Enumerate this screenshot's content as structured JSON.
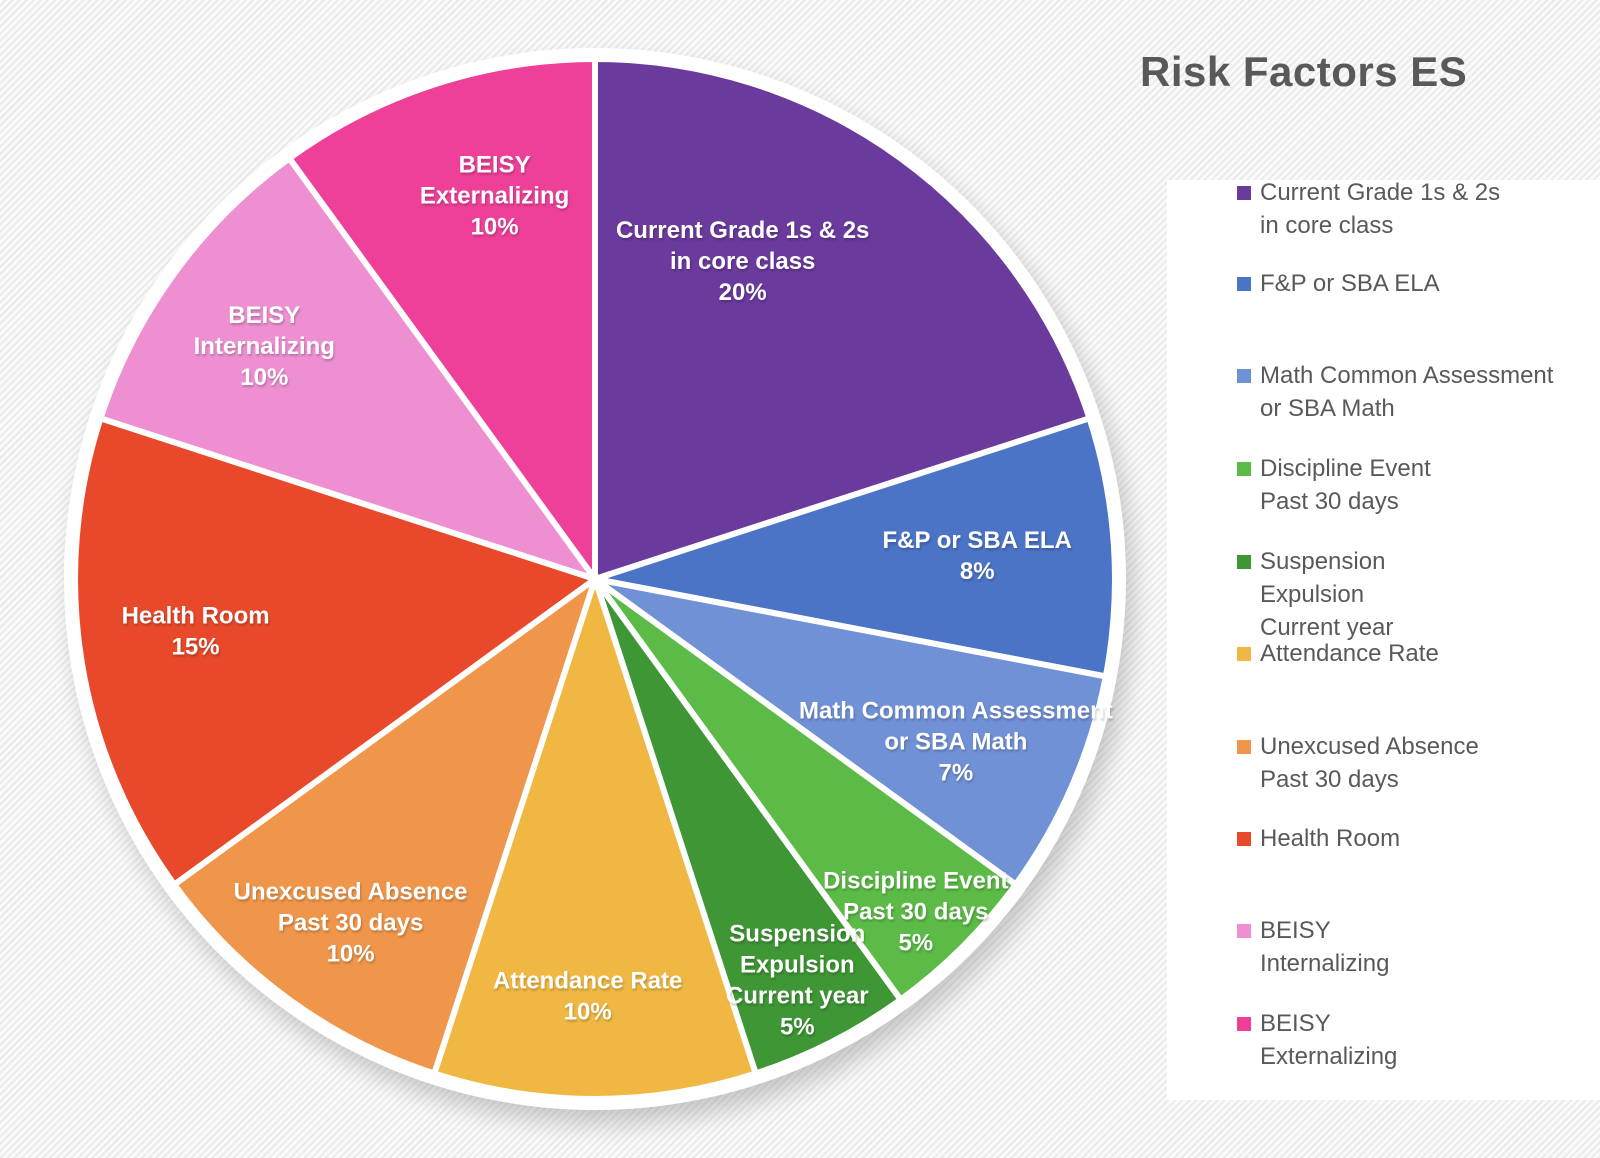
{
  "chart_data": {
    "type": "pie",
    "title": "Risk Factors ES",
    "unit": "%",
    "start_angle_deg": 0,
    "direction": "clockwise",
    "legend_position": "right",
    "grid": false,
    "slices": [
      {
        "label_lines": [
          "Current Grade 1s & 2s",
          "in core class"
        ],
        "value": 20,
        "value_label": "20%",
        "color": "#6B3A9D",
        "label_fx": 0.284,
        "label_fy": -0.611
      },
      {
        "label_lines": [
          "F&P or SBA ELA"
        ],
        "value": 8,
        "value_label": "8%",
        "color": "#4B74C6",
        "label_fx": 0.735,
        "label_fy": -0.044
      },
      {
        "label_lines": [
          "Math Common Assessment",
          "or SBA Math"
        ],
        "value": 7,
        "value_label": "7%",
        "color": "#7191D6",
        "label_fx": 0.694,
        "label_fy": 0.313
      },
      {
        "label_lines": [
          "Discipline Event",
          "Past 30 days"
        ],
        "value": 5,
        "value_label": "5%",
        "color": "#5CBB46",
        "label_fx": 0.617,
        "label_fy": 0.64
      },
      {
        "label_lines": [
          "Suspension",
          "Expulsion",
          "Current year"
        ],
        "value": 5,
        "value_label": "5%",
        "color": "#3E9634",
        "label_fx": 0.389,
        "label_fy": 0.772
      },
      {
        "label_lines": [
          "Attendance Rate"
        ],
        "value": 10,
        "value_label": "10%",
        "color": "#F0B843",
        "label_fx": -0.014,
        "label_fy": 0.803
      },
      {
        "label_lines": [
          "Unexcused Absence",
          "Past 30 days"
        ],
        "value": 10,
        "value_label": "10%",
        "color": "#F0964A",
        "label_fx": -0.47,
        "label_fy": 0.662
      },
      {
        "label_lines": [
          "Health Room"
        ],
        "value": 15,
        "value_label": "15%",
        "color": "#E8492B",
        "label_fx": -0.768,
        "label_fy": 0.101
      },
      {
        "label_lines": [
          "BEISY",
          "Internalizing"
        ],
        "value": 10,
        "value_label": "10%",
        "color": "#EE8FD2",
        "label_fx": -0.636,
        "label_fy": -0.447
      },
      {
        "label_lines": [
          "BEISY",
          "Externalizing"
        ],
        "value": 10,
        "value_label": "10%",
        "color": "#EE4099",
        "label_fx": -0.193,
        "label_fy": -0.737
      }
    ]
  },
  "legend": {
    "items": [
      {
        "lines": [
          "Current Grade 1s & 2s",
          "in core class"
        ]
      },
      {
        "lines": [
          "F&P or SBA ELA"
        ]
      },
      {
        "lines": [
          "Math Common Assessment",
          "or SBA Math"
        ]
      },
      {
        "lines": [
          "Discipline Event",
          "Past 30 days"
        ]
      },
      {
        "lines": [
          "Suspension",
          "Expulsion",
          "Current year"
        ]
      },
      {
        "lines": [
          "Attendance Rate"
        ]
      },
      {
        "lines": [
          "Unexcused Absence",
          "Past 30 days"
        ]
      },
      {
        "lines": [
          "Health Room"
        ]
      },
      {
        "lines": [
          "BEISY",
          "Internalizing"
        ]
      },
      {
        "lines": [
          "BEISY",
          "Externalizing"
        ]
      }
    ]
  }
}
